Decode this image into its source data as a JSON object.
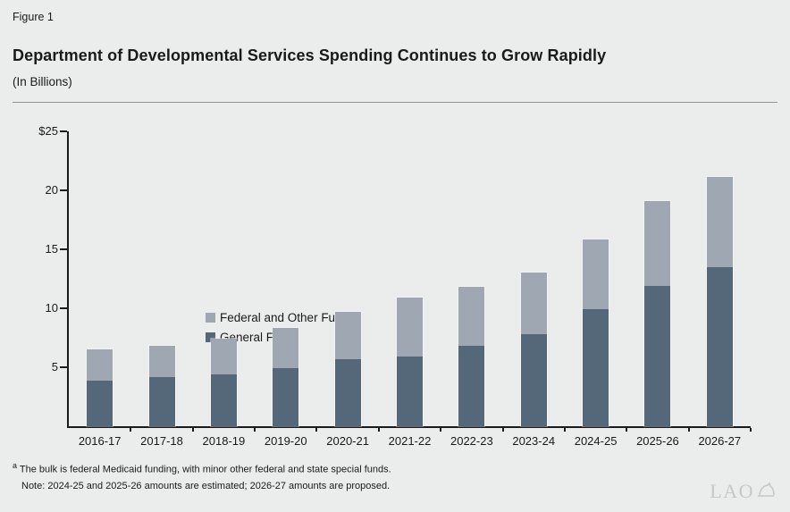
{
  "figure_label": "Figure 1",
  "title": "Department of Developmental Services Spending Continues to Grow Rapidly",
  "subtitle": "(In Billions)",
  "legend": {
    "federal": {
      "label": "Federal and Other Funds",
      "sup": "a"
    },
    "general": {
      "label": "General Fund"
    }
  },
  "colors": {
    "general_fund": "#546879",
    "federal_other": "#9ea7b2",
    "background": "#ebedec",
    "axis": "#1b1b1b",
    "rule": "#8f9492",
    "logo": "#c4c8c7"
  },
  "chart_data": {
    "type": "bar",
    "stacked": true,
    "title": "Department of Developmental Services Spending Continues to Grow Rapidly",
    "subtitle": "(In Billions)",
    "categories": [
      "2016-17",
      "2017-18",
      "2018-19",
      "2019-20",
      "2020-21",
      "2021-22",
      "2022-23",
      "2023-24",
      "2024-25",
      "2025-26",
      "2026-27"
    ],
    "series": [
      {
        "name": "General Fund",
        "color_key": "general_fund",
        "values": [
          3.9,
          4.2,
          4.4,
          4.9,
          5.7,
          5.9,
          6.8,
          7.8,
          9.9,
          11.9,
          13.5
        ]
      },
      {
        "name": "Federal and Other Funds",
        "color_key": "federal_other",
        "values": [
          2.6,
          2.6,
          3.0,
          3.4,
          4.0,
          5.0,
          5.0,
          5.2,
          5.9,
          7.2,
          7.6
        ]
      }
    ],
    "totals": [
      6.5,
      6.8,
      7.4,
      8.3,
      9.7,
      10.9,
      11.8,
      13.0,
      15.8,
      19.1,
      21.1
    ],
    "ylim": [
      0,
      25
    ],
    "y_ticks": [
      {
        "value": 5,
        "label": "5"
      },
      {
        "value": 10,
        "label": "10"
      },
      {
        "value": 15,
        "label": "15"
      },
      {
        "value": 20,
        "label": "20"
      },
      {
        "value": 25,
        "label": "$25"
      }
    ],
    "grid": false,
    "legend_position": "inside-top-left"
  },
  "footnote": {
    "sup": "a",
    "text": "The bulk is federal Medicaid funding, with minor other federal and state special funds."
  },
  "note": "Note: 2024-25 and 2025-26 amounts are estimated; 2026-27 amounts are proposed.",
  "logo": {
    "text": "LAO"
  }
}
